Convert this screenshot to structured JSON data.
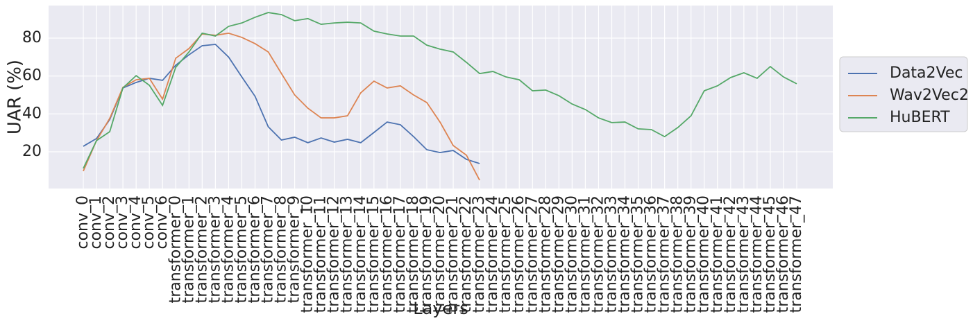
{
  "chart_data": {
    "type": "line",
    "xlabel": "Layers",
    "ylabel": "UAR (%)",
    "categories": [
      "conv_0",
      "conv_1",
      "conv_2",
      "conv_3",
      "conv_4",
      "conv_5",
      "conv_6",
      "transformer_0",
      "transformer_1",
      "transformer_2",
      "transformer_3",
      "transformer_4",
      "transformer_5",
      "transformer_6",
      "transformer_7",
      "transformer_8",
      "transformer_9",
      "transformer_10",
      "transformer_11",
      "transformer_12",
      "transformer_13",
      "transformer_14",
      "transformer_15",
      "transformer_16",
      "transformer_17",
      "transformer_18",
      "transformer_19",
      "transformer_20",
      "transformer_21",
      "transformer_22",
      "transformer_23",
      "transformer_24",
      "transformer_25",
      "transformer_26",
      "transformer_27",
      "transformer_28",
      "transformer_29",
      "transformer_30",
      "transformer_31",
      "transformer_32",
      "transformer_33",
      "transformer_34",
      "transformer_35",
      "transformer_36",
      "transformer_37",
      "transformer_38",
      "transformer_39",
      "transformer_40",
      "transformer_41",
      "transformer_42",
      "transformer_43",
      "transformer_44",
      "transformer_45",
      "transformer_46",
      "transformer_47"
    ],
    "series": [
      {
        "name": "Data2Vec",
        "color": "#4c72b0",
        "values": [
          22.9,
          27,
          37,
          53.7,
          56.6,
          58.8,
          57.7,
          65.7,
          71.2,
          76,
          76.7,
          70,
          59.5,
          49.3,
          33.2,
          26.2,
          27.7,
          24.8,
          27.3,
          25.1,
          26.6,
          24.8,
          30.2,
          35.7,
          34.3,
          28,
          21.1,
          19.6,
          20.7,
          16,
          13.8,
          null,
          null,
          null,
          null,
          null,
          null,
          null,
          null,
          null,
          null,
          null,
          null,
          null,
          null,
          null,
          null,
          null,
          null,
          null,
          null,
          null,
          null,
          null,
          null
        ]
      },
      {
        "name": "Wav2Vec2",
        "color": "#dd8452",
        "values": [
          9.8,
          25.9,
          37.6,
          54,
          58,
          58.8,
          47.8,
          69.4,
          74.5,
          82.2,
          81.5,
          82.6,
          80.4,
          77.1,
          72.7,
          61.3,
          50,
          43,
          37.9,
          37.9,
          39,
          51.1,
          57.3,
          53.7,
          54.8,
          50,
          46,
          35.7,
          23.3,
          18.2,
          5,
          null,
          null,
          null,
          null,
          null,
          null,
          null,
          null,
          null,
          null,
          null,
          null,
          null,
          null,
          null,
          null,
          null,
          null,
          null,
          null,
          null,
          null,
          null,
          null
        ]
      },
      {
        "name": "HuBERT",
        "color": "#55a868",
        "values": [
          11.2,
          25.9,
          30.6,
          53.7,
          60.2,
          55.1,
          44.5,
          64.6,
          72.7,
          82.6,
          81.1,
          86.2,
          88,
          91,
          93.5,
          92.4,
          89.2,
          90.3,
          87.3,
          88,
          88.4,
          88,
          83.7,
          82.2,
          81.1,
          81.1,
          76.3,
          74.2,
          72.7,
          67.2,
          61.3,
          62.4,
          59.5,
          58,
          52.2,
          52.6,
          49.6,
          45.2,
          42.3,
          37.9,
          35.4,
          35.7,
          32.1,
          31.7,
          28,
          32.8,
          39,
          52.2,
          54.8,
          59.2,
          61.7,
          58.8,
          65,
          59.5,
          55.9
        ]
      }
    ],
    "ylim": [
      0.6,
      97.2
    ],
    "yticks": [
      20,
      40,
      60,
      80
    ],
    "grid": true,
    "legend": "right"
  }
}
